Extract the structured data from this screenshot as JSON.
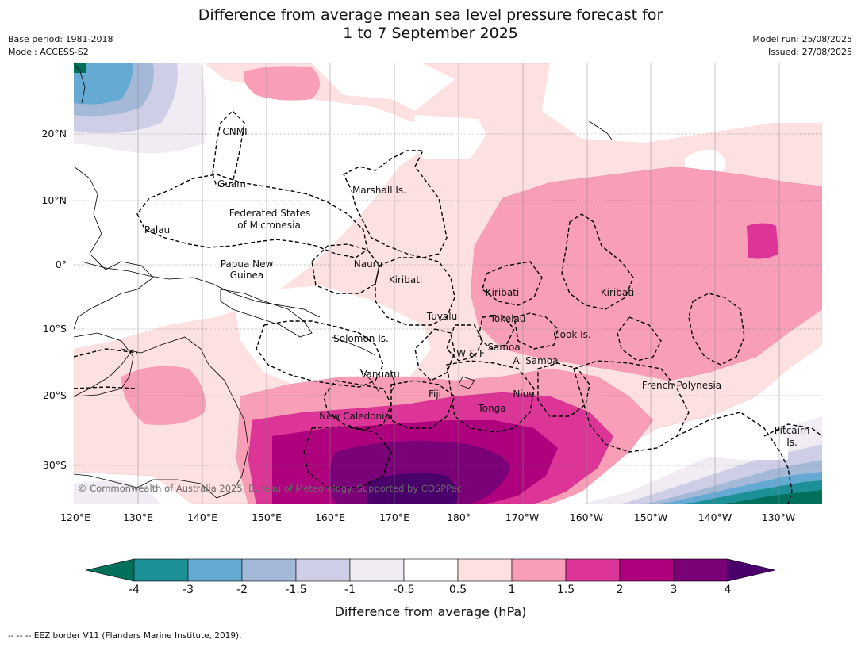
{
  "title_line1": "Difference from average mean sea level pressure forecast for",
  "title_line2": "1 to 7 September 2025",
  "meta": {
    "base_period": "Base period: 1981-2018",
    "model": "Model: ACCESS-S2",
    "model_run": "Model run: 25/08/2025",
    "issued": "Issued: 27/08/2025"
  },
  "lat_labels": [
    "20°N",
    "10°N",
    "0°",
    "10°S",
    "20°S",
    "30°S"
  ],
  "lon_labels": [
    "120°E",
    "130°E",
    "140°E",
    "150°E",
    "160°E",
    "170°E",
    "180°",
    "170°W",
    "160°W",
    "150°W",
    "140°W",
    "130°W"
  ],
  "regions": {
    "cnmi": "CNMI",
    "guam": "Guam",
    "marshall": "Marshall Is.",
    "fsm1": "Federated States",
    "fsm2": "of Micronesia",
    "palau": "Palau",
    "png1": "Papua New",
    "png2": "Guinea",
    "nauru": "Nauru",
    "kiribati_w": "Kiribati",
    "kiribati_c": "Kiribati",
    "kiribati_e": "Kiribati",
    "tuvalu": "Tuvalu",
    "tokelau": "Tokelau",
    "cook": "Cook Is.",
    "solomon": "Solomon Is.",
    "wf": "W & F",
    "samoa": "Samoa",
    "asamoa": "A. Samoa",
    "vanuatu": "Vanuatu",
    "fiji": "Fiji",
    "niue": "Niue",
    "fp": "French Polynesia",
    "tonga": "Tonga",
    "newcal": "New Caledonia",
    "pitcairn1": "Pitcairn",
    "pitcairn2": "Is."
  },
  "copyright": "© Commonwealth of Australia 2025, Bureau of Meteorology. Supported by COSPPac",
  "colorbar": {
    "ticks": [
      "-4",
      "-3",
      "-2",
      "-1.5",
      "-1",
      "-0.5",
      "0.5",
      "1",
      "1.5",
      "2",
      "3",
      "4"
    ],
    "colors": [
      "#00705a",
      "#1b9097",
      "#65aad2",
      "#a4b9d8",
      "#cecfe6",
      "#f1ecf3",
      "#ffffff",
      "#fde0e0",
      "#f99eb7",
      "#dd3497",
      "#ae017e",
      "#7a0177",
      "#49006a"
    ],
    "label": "Difference from average (hPa)"
  },
  "footnote": "-- -- -- EEZ border V11 (Flanders Marine Institute, 2019)."
}
